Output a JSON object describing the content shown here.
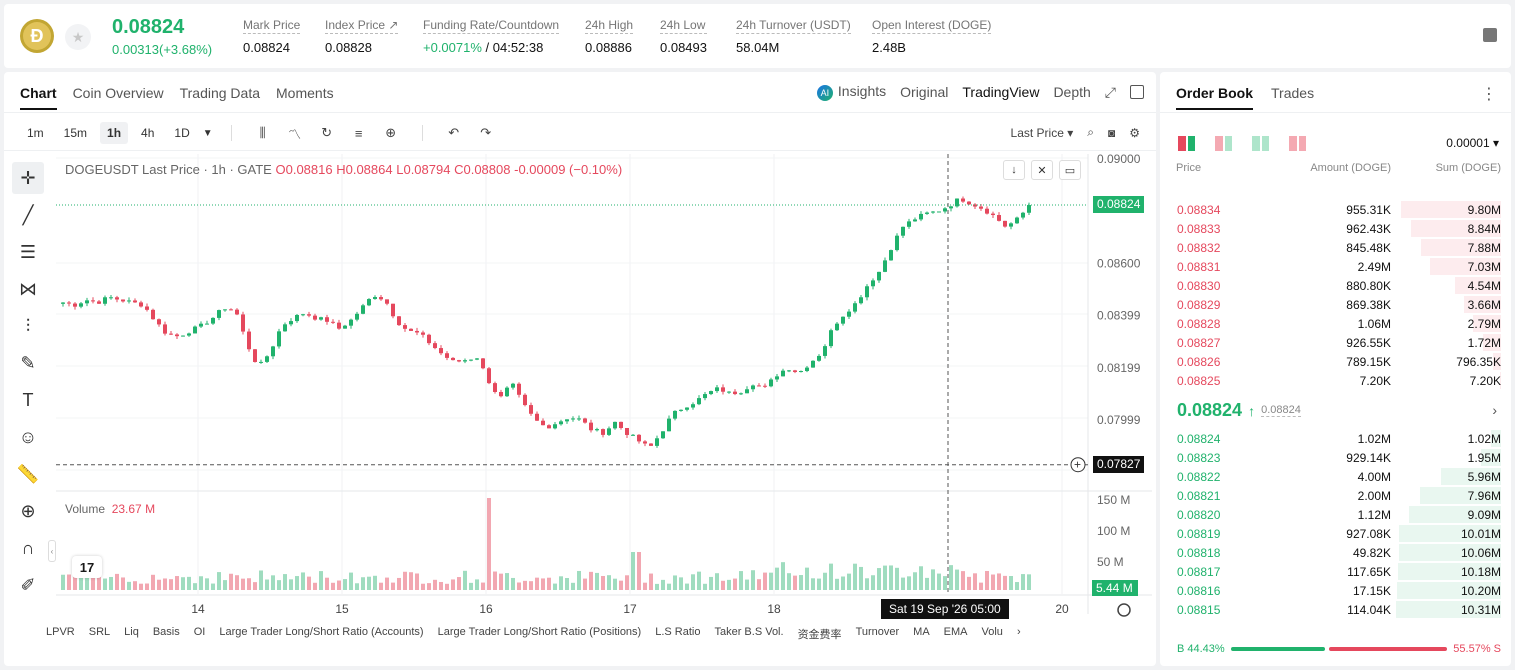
{
  "header": {
    "coin_glyph": "Ð",
    "last_price": "0.08824",
    "change": "0.00313(+3.68%)",
    "stats": [
      {
        "label": "Mark Price",
        "value": "0.08824"
      },
      {
        "label": "Index Price ↗",
        "value": "0.08828"
      },
      {
        "label": "Funding Rate/Countdown",
        "value_green": "+0.0071%",
        "value": " / 04:52:38"
      },
      {
        "label": "24h High",
        "value": "0.08886"
      },
      {
        "label": "24h Low",
        "value": "0.08493"
      },
      {
        "label": "24h Turnover (USDT)",
        "value": "58.04M"
      },
      {
        "label": "Open Interest (DOGE)",
        "value": "2.48B"
      }
    ]
  },
  "chart_panel": {
    "tabs": [
      "Chart",
      "Coin Overview",
      "Trading Data",
      "Moments"
    ],
    "modes": {
      "insights": "Insights",
      "original": "Original",
      "tradingview": "TradingView",
      "depth": "Depth"
    },
    "timeframes": [
      "1m",
      "15m",
      "1h",
      "4h",
      "1D"
    ],
    "price_source": "Last Price ▾",
    "legend": {
      "symbol": "DOGEUSDT Last Price · 1h · GATE",
      "o": "O0.08816",
      "h": "H0.08864",
      "l": "L0.08794",
      "c": "C0.08808",
      "chg": "-0.00009 (−0.10%)"
    },
    "volume_legend": {
      "label": "Volume",
      "value": "23.67 M"
    },
    "last_price_tag": "0.08824",
    "cross_price_tag": "0.07827",
    "cross_time": "Sat 19 Sep '26   05:00",
    "tv_logo": "17",
    "indicators": [
      "LPVR",
      "SRL",
      "Liq",
      "Basis",
      "OI",
      "Large Trader Long/Short Ratio (Accounts)",
      "Large Trader Long/Short Ratio (Positions)",
      "L.S Ratio",
      "Taker B.S Vol.",
      "资金费率",
      "Turnover",
      "MA",
      "EMA",
      "Volu"
    ]
  },
  "chart_data": {
    "type": "candlestick",
    "title": "DOGEUSDT Last Price · 1h · GATE",
    "price_axis_ticks": [
      0.09,
      0.086,
      0.08399,
      0.08199,
      0.07999
    ],
    "volume_axis_ticks": [
      "150 M",
      "100 M",
      "50 M"
    ],
    "x_ticks": [
      "14",
      "15",
      "16",
      "17",
      "18",
      "20"
    ],
    "ylim": [
      0.0773,
      0.0902
    ],
    "close_path": [
      0.0845,
      0.0844,
      0.0846,
      0.0845,
      0.0847,
      0.0846,
      0.0845,
      0.0844,
      0.0838,
      0.0833,
      0.0832,
      0.0834,
      0.0836,
      0.0839,
      0.0843,
      0.0842,
      0.0829,
      0.082,
      0.0826,
      0.0836,
      0.0839,
      0.0841,
      0.0839,
      0.0838,
      0.0835,
      0.0838,
      0.0843,
      0.0848,
      0.0846,
      0.0838,
      0.0834,
      0.0833,
      0.0829,
      0.0825,
      0.0822,
      0.0823,
      0.0824,
      0.0815,
      0.0808,
      0.0814,
      0.0806,
      0.08,
      0.0797,
      0.0799,
      0.0801,
      0.08,
      0.0796,
      0.0795,
      0.0799,
      0.0795,
      0.0792,
      0.0789,
      0.0795,
      0.0802,
      0.0805,
      0.0807,
      0.081,
      0.0812,
      0.081,
      0.0811,
      0.0814,
      0.0812,
      0.0817,
      0.082,
      0.0818,
      0.0822,
      0.0826,
      0.0836,
      0.0841,
      0.0845,
      0.0852,
      0.0857,
      0.0866,
      0.0874,
      0.0877,
      0.0879,
      0.088,
      0.0882,
      0.0885,
      0.0883,
      0.0881,
      0.0878,
      0.0874,
      0.0877,
      0.0882
    ],
    "last_price": 0.08824,
    "cross_price": 0.07827
  },
  "orderbook": {
    "tabs": [
      "Order Book",
      "Trades"
    ],
    "tick": "0.00001 ▾",
    "headers": {
      "price": "Price",
      "amount": "Amount (DOGE)",
      "sum": "Sum (DOGE)"
    },
    "asks": [
      {
        "p": "0.08834",
        "a": "955.31K",
        "s": "9.80M",
        "depth": 0.95
      },
      {
        "p": "0.08833",
        "a": "962.43K",
        "s": "8.84M",
        "depth": 0.86
      },
      {
        "p": "0.08832",
        "a": "845.48K",
        "s": "7.88M",
        "depth": 0.76
      },
      {
        "p": "0.08831",
        "a": "2.49M",
        "s": "7.03M",
        "depth": 0.68
      },
      {
        "p": "0.08830",
        "a": "880.80K",
        "s": "4.54M",
        "depth": 0.44
      },
      {
        "p": "0.08829",
        "a": "869.38K",
        "s": "3.66M",
        "depth": 0.35
      },
      {
        "p": "0.08828",
        "a": "1.06M",
        "s": "2.79M",
        "depth": 0.27
      },
      {
        "p": "0.08827",
        "a": "926.55K",
        "s": "1.72M",
        "depth": 0.17
      },
      {
        "p": "0.08826",
        "a": "789.15K",
        "s": "796.35K",
        "depth": 0.08
      },
      {
        "p": "0.08825",
        "a": "7.20K",
        "s": "7.20K",
        "depth": 0.01
      }
    ],
    "mid_price": "0.08824",
    "mid_arrow": "↑",
    "mid_mark": "0.08824",
    "bids": [
      {
        "p": "0.08824",
        "a": "1.02M",
        "s": "1.02M",
        "depth": 0.1
      },
      {
        "p": "0.08823",
        "a": "929.14K",
        "s": "1.95M",
        "depth": 0.19
      },
      {
        "p": "0.08822",
        "a": "4.00M",
        "s": "5.96M",
        "depth": 0.57
      },
      {
        "p": "0.08821",
        "a": "2.00M",
        "s": "7.96M",
        "depth": 0.77
      },
      {
        "p": "0.08820",
        "a": "1.12M",
        "s": "9.09M",
        "depth": 0.88
      },
      {
        "p": "0.08819",
        "a": "927.08K",
        "s": "10.01M",
        "depth": 0.97
      },
      {
        "p": "0.08818",
        "a": "49.82K",
        "s": "10.06M",
        "depth": 0.97
      },
      {
        "p": "0.08817",
        "a": "117.65K",
        "s": "10.18M",
        "depth": 0.98
      },
      {
        "p": "0.08816",
        "a": "17.15K",
        "s": "10.20M",
        "depth": 0.99
      },
      {
        "p": "0.08815",
        "a": "114.04K",
        "s": "10.31M",
        "depth": 1.0
      }
    ],
    "ratio": {
      "buy_label": "B 44.43%",
      "sell_label": "55.57% S",
      "buy": 44.43,
      "sell": 55.57
    }
  },
  "colors": {
    "up": "#20b26c",
    "down": "#e5485d",
    "up_bar": "#e9f7f0",
    "down_bar": "#fdecee"
  }
}
